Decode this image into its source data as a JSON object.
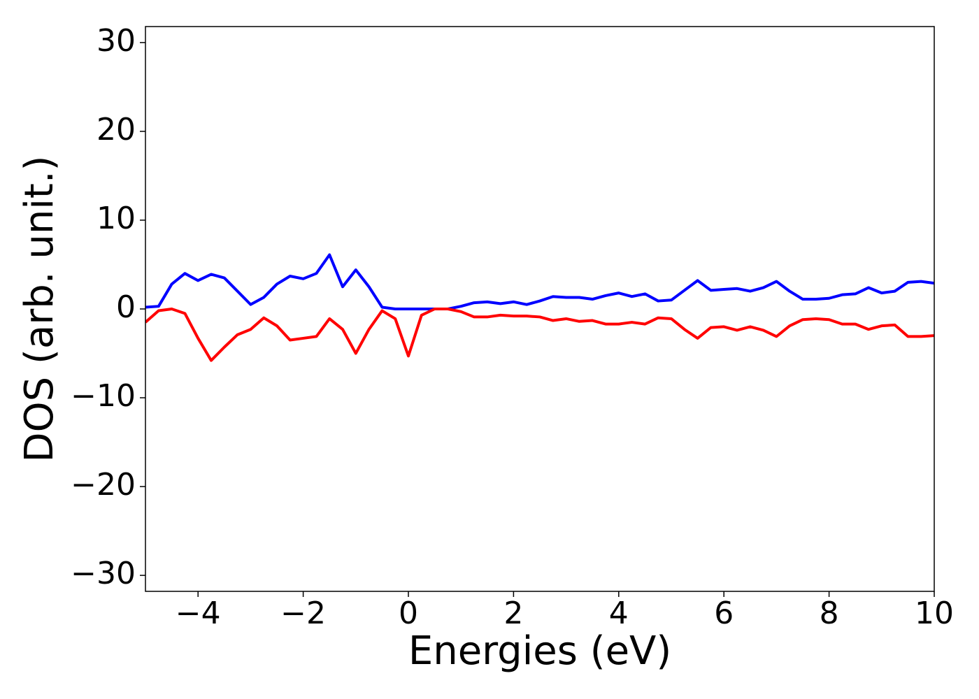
{
  "chart_data": {
    "type": "line",
    "xlabel": "Energies (eV)",
    "ylabel": "DOS (arb. unit.)",
    "x": [
      -5,
      -4.75,
      -4.5,
      -4.25,
      -4,
      -3.75,
      -3.5,
      -3.25,
      -3,
      -2.75,
      -2.5,
      -2.25,
      -2,
      -1.75,
      -1.5,
      -1.25,
      -1,
      -0.75,
      -0.5,
      -0.25,
      0,
      0.25,
      0.5,
      0.75,
      1,
      1.25,
      1.5,
      1.75,
      2,
      2.25,
      2.5,
      2.75,
      3,
      3.25,
      3.5,
      3.75,
      4,
      4.25,
      4.5,
      4.75,
      5,
      5.25,
      5.5,
      5.75,
      6,
      6.25,
      6.5,
      6.75,
      7,
      7.25,
      7.5,
      7.75,
      8,
      8.25,
      8.5,
      8.75,
      9,
      9.25,
      9.5,
      9.75,
      10
    ],
    "series": [
      {
        "color": "#0000ff",
        "values": [
          0.2,
          0.3,
          2.8,
          4.0,
          3.2,
          3.9,
          3.5,
          2.0,
          0.5,
          1.3,
          2.8,
          3.7,
          3.4,
          4.0,
          6.1,
          2.5,
          4.4,
          2.5,
          0.2,
          0,
          0,
          0,
          0,
          0,
          0.3,
          0.7,
          0.8,
          0.6,
          0.8,
          0.5,
          0.9,
          1.4,
          1.3,
          1.3,
          1.1,
          1.5,
          1.8,
          1.4,
          1.7,
          0.9,
          1.0,
          2.1,
          3.2,
          2.1,
          2.2,
          2.3,
          2.0,
          2.4,
          3.1,
          2.0,
          1.1,
          1.1,
          1.2,
          1.6,
          1.7,
          2.4,
          1.8,
          2.0,
          3.0,
          3.1,
          2.9
        ]
      },
      {
        "color": "#ff0000",
        "values": [
          -1.5,
          -0.2,
          0,
          -0.5,
          -3.3,
          -5.8,
          -4.3,
          -2.9,
          -2.3,
          -1.0,
          -1.9,
          -3.5,
          -3.3,
          -3.1,
          -1.1,
          -2.3,
          -5.0,
          -2.3,
          -0.2,
          -1.1,
          -5.3,
          -0.7,
          0,
          0,
          -0.3,
          -0.9,
          -0.9,
          -0.7,
          -0.8,
          -0.8,
          -0.9,
          -1.3,
          -1.1,
          -1.4,
          -1.3,
          -1.7,
          -1.7,
          -1.5,
          -1.7,
          -1.0,
          -1.1,
          -2.3,
          -3.3,
          -2.1,
          -2.0,
          -2.4,
          -2.0,
          -2.4,
          -3.1,
          -1.9,
          -1.2,
          -1.1,
          -1.2,
          -1.7,
          -1.7,
          -2.3,
          -1.9,
          -1.8,
          -3.1,
          -3.1,
          -3.0
        ]
      }
    ],
    "xlim": [
      -5,
      10
    ],
    "xticks": [
      {
        "value": -4,
        "label": "−4"
      },
      {
        "value": -2,
        "label": "−2"
      },
      0,
      2,
      4,
      6,
      8,
      10
    ],
    "ylim": [
      -31.8,
      31.8
    ],
    "yticks": [
      {
        "value": -30,
        "label": "−30"
      },
      {
        "value": -20,
        "label": "−20"
      },
      {
        "value": -10,
        "label": "−10"
      },
      0,
      10,
      20,
      30
    ]
  }
}
